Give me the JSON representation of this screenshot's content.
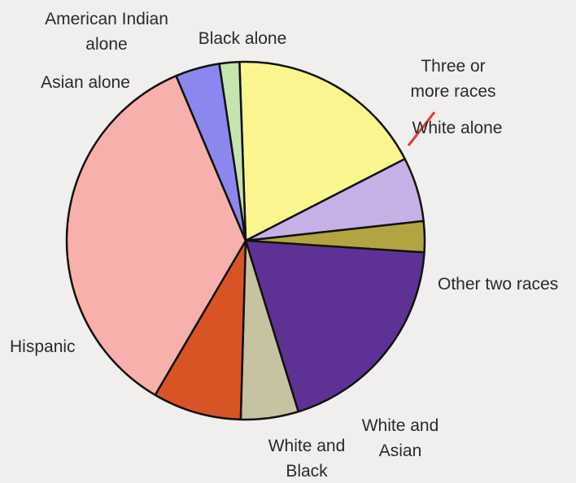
{
  "chart_data": {
    "type": "pie",
    "title": "",
    "slices": [
      {
        "label": "Black alone",
        "value": 18.0,
        "color": "#fbf58f",
        "label_lines": [
          "Black alone"
        ]
      },
      {
        "label": "Three or more races",
        "value": 5.8,
        "color": "#c6b0e6",
        "label_lines": [
          "Three or",
          "more races"
        ]
      },
      {
        "label": "White alone",
        "value": 2.8,
        "color": "#b3a443",
        "label_lines": [
          "White alone"
        ]
      },
      {
        "label": "Other two races",
        "value": 19.2,
        "color": "#5e3294",
        "label_lines": [
          "Other two races"
        ]
      },
      {
        "label": "White and Asian",
        "value": 5.2,
        "color": "#c6c2a2",
        "label_lines": [
          "White and",
          "Asian"
        ]
      },
      {
        "label": "White and Black",
        "value": 8.0,
        "color": "#d95424",
        "label_lines": [
          "White and",
          "Black"
        ]
      },
      {
        "label": "Hispanic",
        "value": 35.2,
        "color": "#f7b0ab",
        "label_lines": [
          "Hispanic"
        ]
      },
      {
        "label": "Asian alone",
        "value": 4.0,
        "color": "#8a88ee",
        "label_lines": [
          "Asian alone"
        ]
      },
      {
        "label": "American Indian alone",
        "value": 1.8,
        "color": "#c5e4ae",
        "label_lines": [
          "American Indian",
          "alone"
        ]
      }
    ],
    "start_angle_deg": -2,
    "direction": "clockwise",
    "legend": "none",
    "leader_line_color": "#d93a3a"
  }
}
